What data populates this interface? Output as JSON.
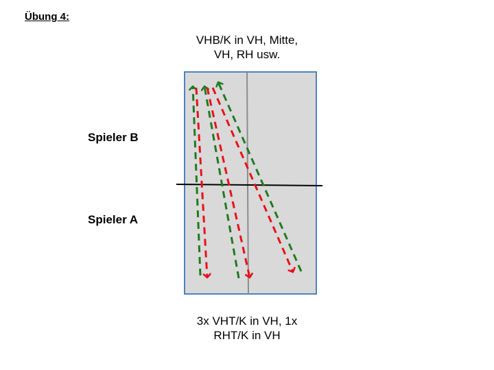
{
  "heading": "Übung 4:",
  "top_caption": {
    "line1": "VHB/K in VH, Mitte,",
    "line2": "VH, RH usw."
  },
  "bottom_caption": {
    "line1": "3x VHT/K in VH, 1x",
    "line2": "RHT/K in VH"
  },
  "players": {
    "b": "Spieler B",
    "a": "Spieler A"
  },
  "colors": {
    "table_fill": "#d9d9d9",
    "table_border": "#4f81bd",
    "center_line": "#8c8c8c",
    "net": "#000000",
    "green_arrow": "#1f7a1f",
    "red_arrow": "#e8101a"
  }
}
